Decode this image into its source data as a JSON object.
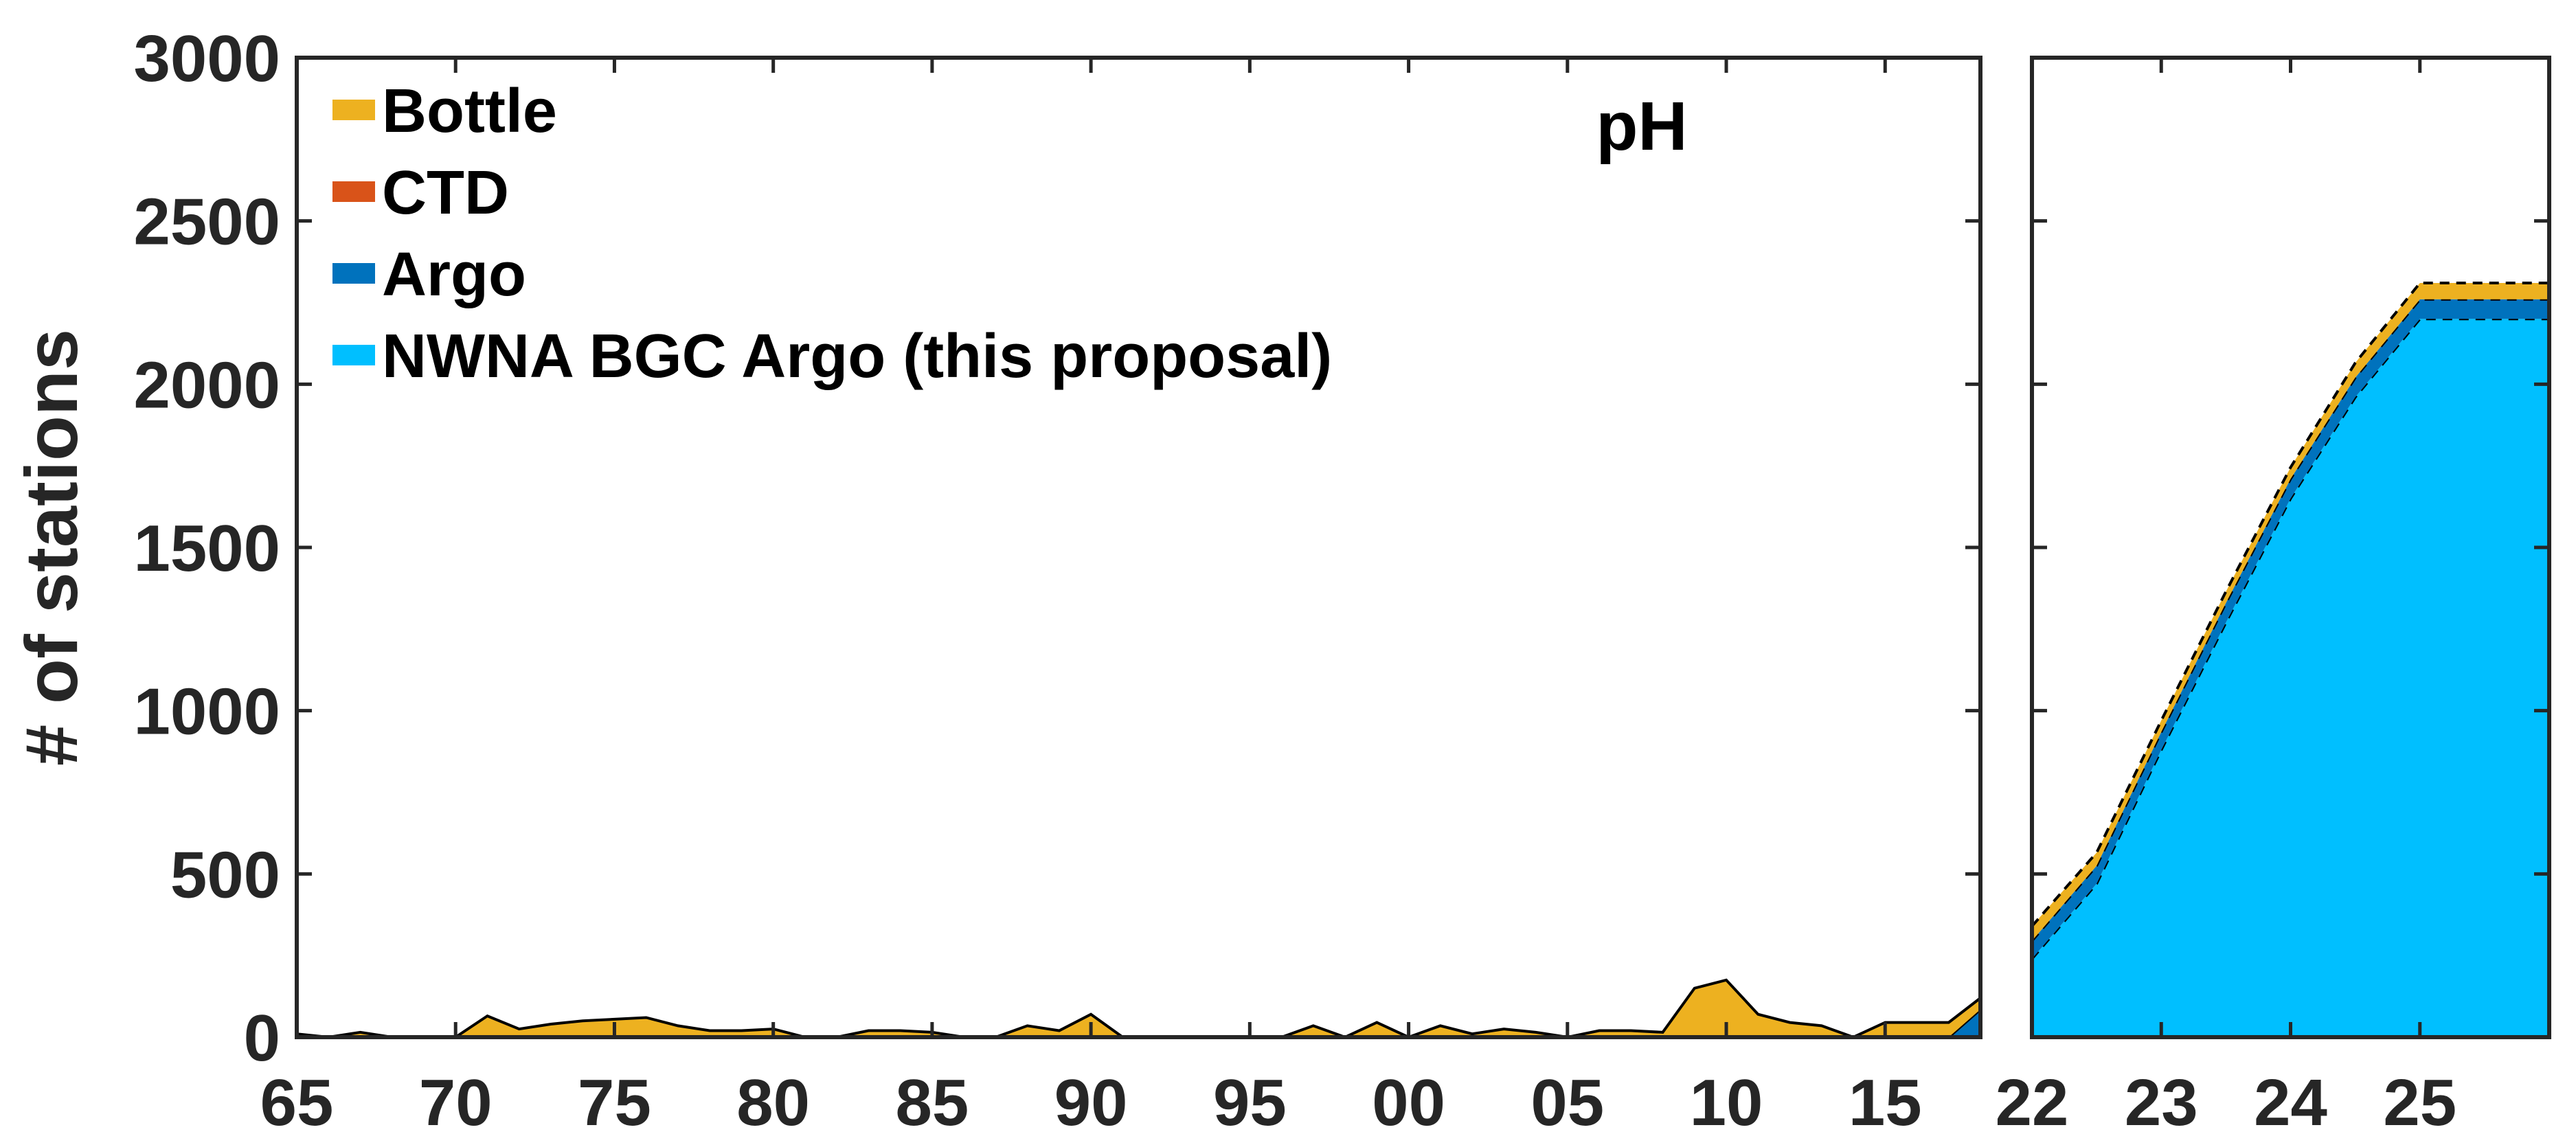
{
  "chart_data": {
    "type": "area",
    "ylabel": "# of stations",
    "ylim": [
      0,
      3000
    ],
    "yticks": [
      0,
      500,
      1000,
      1500,
      2000,
      2500,
      3000
    ],
    "grid": false,
    "legend_placement": "top-left",
    "legend": [
      {
        "name": "Bottle",
        "color": "#EDB120"
      },
      {
        "name": "CTD",
        "color": "#D95319"
      },
      {
        "name": "Argo",
        "color": "#0072BD"
      },
      {
        "name": "NWNA BGC Argo (this proposal)",
        "color": "#00BFFF"
      }
    ],
    "panels": [
      {
        "label": "pH",
        "type": "area",
        "stacked": true,
        "xlim": [
          1965,
          2018
        ],
        "x_tick_labels": [
          "65",
          "70",
          "75",
          "80",
          "85",
          "90",
          "95",
          "00",
          "05",
          "10",
          "15"
        ],
        "x_tick_values": [
          1965,
          1970,
          1975,
          1980,
          1985,
          1990,
          1995,
          2000,
          2005,
          2010,
          2015
        ],
        "x": [
          1965,
          1966,
          1967,
          1968,
          1969,
          1970,
          1971,
          1972,
          1973,
          1974,
          1975,
          1976,
          1977,
          1978,
          1979,
          1980,
          1981,
          1982,
          1983,
          1984,
          1985,
          1986,
          1987,
          1988,
          1989,
          1990,
          1991,
          1992,
          1993,
          1994,
          1995,
          1996,
          1997,
          1998,
          1999,
          2000,
          2001,
          2002,
          2003,
          2004,
          2005,
          2006,
          2007,
          2008,
          2009,
          2010,
          2011,
          2012,
          2013,
          2014,
          2015,
          2016,
          2017,
          2018
        ],
        "series": [
          {
            "name": "Argo",
            "values": [
              0,
              0,
              0,
              0,
              0,
              0,
              0,
              0,
              0,
              0,
              0,
              0,
              0,
              0,
              0,
              0,
              0,
              0,
              0,
              0,
              0,
              0,
              0,
              0,
              0,
              0,
              0,
              0,
              0,
              0,
              0,
              0,
              0,
              0,
              0,
              0,
              0,
              0,
              0,
              0,
              0,
              0,
              0,
              0,
              0,
              0,
              0,
              0,
              0,
              0,
              0,
              0,
              0,
              85
            ]
          },
          {
            "name": "CTD",
            "values": [
              0,
              0,
              0,
              0,
              0,
              0,
              0,
              0,
              0,
              0,
              0,
              0,
              0,
              0,
              0,
              0,
              0,
              0,
              0,
              0,
              0,
              0,
              0,
              0,
              0,
              0,
              0,
              0,
              0,
              0,
              0,
              0,
              0,
              0,
              0,
              0,
              0,
              0,
              0,
              0,
              0,
              0,
              0,
              0,
              0,
              0,
              0,
              0,
              0,
              0,
              0,
              0,
              0,
              0
            ]
          },
          {
            "name": "Bottle",
            "values": [
              10,
              0,
              15,
              0,
              0,
              0,
              65,
              25,
              40,
              50,
              55,
              60,
              35,
              20,
              20,
              25,
              0,
              0,
              20,
              20,
              15,
              0,
              0,
              35,
              20,
              70,
              0,
              0,
              0,
              0,
              0,
              0,
              35,
              0,
              45,
              0,
              35,
              10,
              25,
              15,
              0,
              20,
              20,
              15,
              150,
              175,
              70,
              45,
              35,
              0,
              45,
              45,
              45,
              35
            ]
          }
        ]
      },
      {
        "label": "",
        "type": "area",
        "stacked": true,
        "xlim": [
          2022,
          2026
        ],
        "x_tick_labels": [
          "22",
          "23",
          "24",
          "25"
        ],
        "x_tick_values": [
          2022,
          2023,
          2024,
          2025
        ],
        "x": [
          2022,
          2022.5,
          2023,
          2023.5,
          2024,
          2024.5,
          2025,
          2026
        ],
        "series": [
          {
            "name": "NWNA BGC Argo (this proposal)",
            "values": [
              240,
              470,
              880,
              1270,
              1650,
              1960,
              2200,
              2200
            ]
          },
          {
            "name": "Argo",
            "values": [
              55,
              55,
              55,
              60,
              60,
              60,
              60,
              60
            ]
          },
          {
            "name": "CTD",
            "values": [
              0,
              0,
              0,
              0,
              0,
              0,
              0,
              0
            ]
          },
          {
            "name": "Bottle",
            "values": [
              45,
              40,
              35,
              35,
              35,
              45,
              50,
              50
            ]
          }
        ]
      }
    ]
  }
}
